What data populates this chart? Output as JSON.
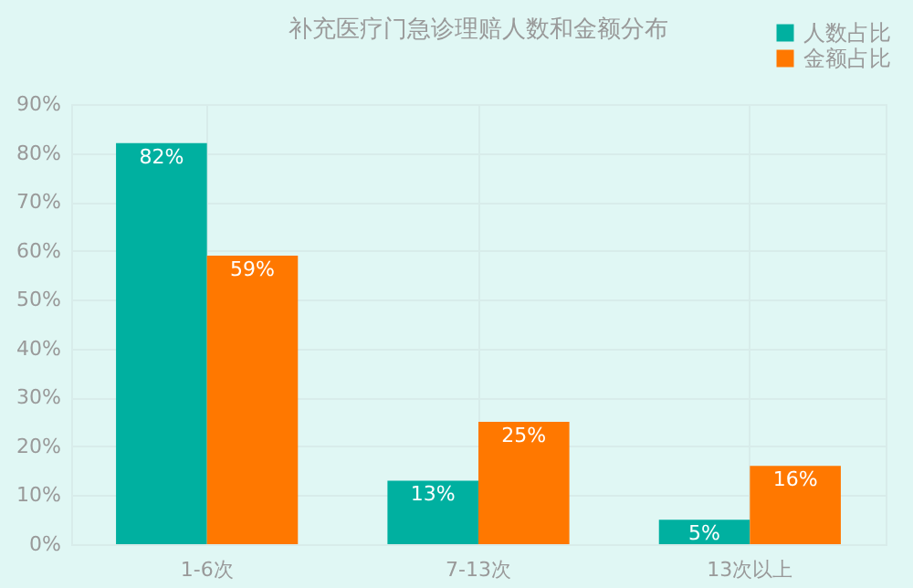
{
  "chart_data": {
    "type": "bar",
    "title": "补充医疗门急诊理赔人数和金额分布",
    "categories": [
      "1-6次",
      "7-13次",
      "13次以上"
    ],
    "series": [
      {
        "name": "人数占比",
        "color": "#00b0a0",
        "values": [
          82,
          13,
          5
        ],
        "value_labels": [
          "82%",
          "13%",
          "5%"
        ]
      },
      {
        "name": "金额占比",
        "color": "#ff7800",
        "values": [
          59,
          25,
          16
        ],
        "value_labels": [
          "59%",
          "25%",
          "16%"
        ]
      }
    ],
    "ylim": [
      0,
      90
    ],
    "yticks": [
      {
        "value": 0,
        "label": "0%"
      },
      {
        "value": 10,
        "label": "10%"
      },
      {
        "value": 20,
        "label": "20%"
      },
      {
        "value": 30,
        "label": "30%"
      },
      {
        "value": 40,
        "label": "40%"
      },
      {
        "value": 50,
        "label": "50%"
      },
      {
        "value": 60,
        "label": "60%"
      },
      {
        "value": 70,
        "label": "70%"
      },
      {
        "value": 80,
        "label": "80%"
      },
      {
        "value": 90,
        "label": "90%"
      }
    ],
    "grid": true,
    "legend": "top right"
  }
}
